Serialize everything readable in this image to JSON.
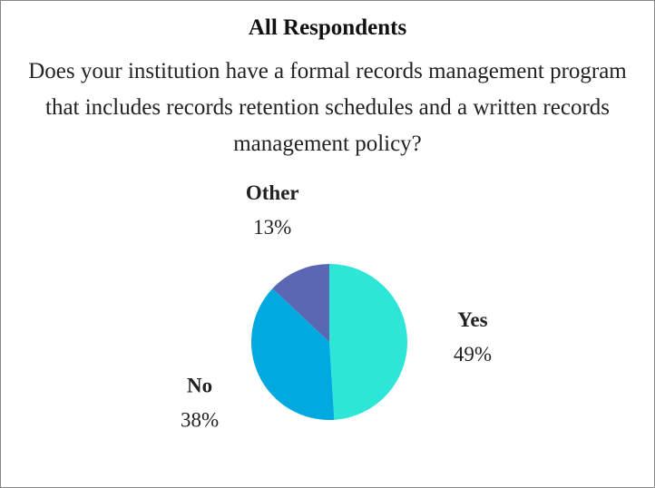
{
  "chart_data": {
    "type": "pie",
    "title": "All Respondents",
    "subtitle": "Does your institution have a formal records management program that includes records retention schedules and a written records management policy?",
    "categories": [
      "Yes",
      "No",
      "Other"
    ],
    "values": [
      49,
      38,
      13
    ],
    "value_labels": [
      "49%",
      "38%",
      "13%"
    ],
    "colors": [
      "#2ee6d8",
      "#00a9e0",
      "#5a68b4"
    ]
  }
}
